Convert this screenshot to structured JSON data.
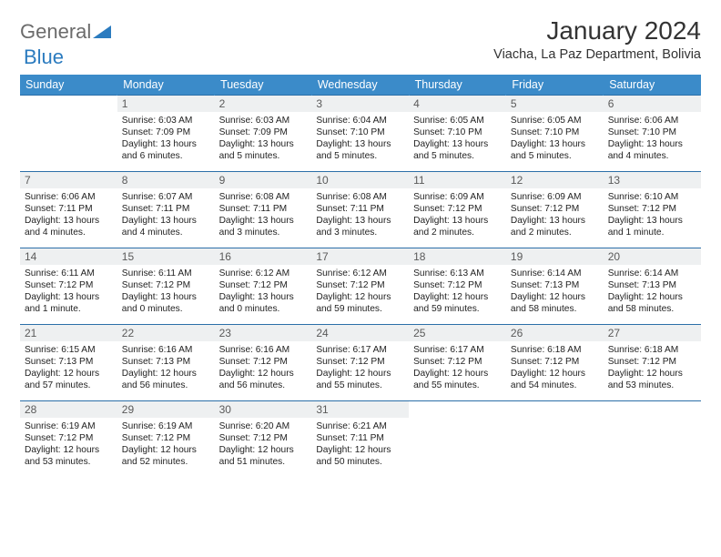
{
  "brand": {
    "part1": "General",
    "part2": "Blue"
  },
  "title": "January 2024",
  "location": "Viacha, La Paz Department, Bolivia",
  "colors": {
    "header_bg": "#3b8bc9",
    "cell_border": "#2b6fa8",
    "daynum_bg": "#eef0f1",
    "brand_gray": "#6b6b6b",
    "brand_blue": "#2b7bbf"
  },
  "weekdays": [
    "Sunday",
    "Monday",
    "Tuesday",
    "Wednesday",
    "Thursday",
    "Friday",
    "Saturday"
  ],
  "weeks": [
    [
      null,
      {
        "n": "1",
        "sr": "Sunrise: 6:03 AM",
        "ss": "Sunset: 7:09 PM",
        "dl": "Daylight: 13 hours and 6 minutes."
      },
      {
        "n": "2",
        "sr": "Sunrise: 6:03 AM",
        "ss": "Sunset: 7:09 PM",
        "dl": "Daylight: 13 hours and 5 minutes."
      },
      {
        "n": "3",
        "sr": "Sunrise: 6:04 AM",
        "ss": "Sunset: 7:10 PM",
        "dl": "Daylight: 13 hours and 5 minutes."
      },
      {
        "n": "4",
        "sr": "Sunrise: 6:05 AM",
        "ss": "Sunset: 7:10 PM",
        "dl": "Daylight: 13 hours and 5 minutes."
      },
      {
        "n": "5",
        "sr": "Sunrise: 6:05 AM",
        "ss": "Sunset: 7:10 PM",
        "dl": "Daylight: 13 hours and 5 minutes."
      },
      {
        "n": "6",
        "sr": "Sunrise: 6:06 AM",
        "ss": "Sunset: 7:10 PM",
        "dl": "Daylight: 13 hours and 4 minutes."
      }
    ],
    [
      {
        "n": "7",
        "sr": "Sunrise: 6:06 AM",
        "ss": "Sunset: 7:11 PM",
        "dl": "Daylight: 13 hours and 4 minutes."
      },
      {
        "n": "8",
        "sr": "Sunrise: 6:07 AM",
        "ss": "Sunset: 7:11 PM",
        "dl": "Daylight: 13 hours and 4 minutes."
      },
      {
        "n": "9",
        "sr": "Sunrise: 6:08 AM",
        "ss": "Sunset: 7:11 PM",
        "dl": "Daylight: 13 hours and 3 minutes."
      },
      {
        "n": "10",
        "sr": "Sunrise: 6:08 AM",
        "ss": "Sunset: 7:11 PM",
        "dl": "Daylight: 13 hours and 3 minutes."
      },
      {
        "n": "11",
        "sr": "Sunrise: 6:09 AM",
        "ss": "Sunset: 7:12 PM",
        "dl": "Daylight: 13 hours and 2 minutes."
      },
      {
        "n": "12",
        "sr": "Sunrise: 6:09 AM",
        "ss": "Sunset: 7:12 PM",
        "dl": "Daylight: 13 hours and 2 minutes."
      },
      {
        "n": "13",
        "sr": "Sunrise: 6:10 AM",
        "ss": "Sunset: 7:12 PM",
        "dl": "Daylight: 13 hours and 1 minute."
      }
    ],
    [
      {
        "n": "14",
        "sr": "Sunrise: 6:11 AM",
        "ss": "Sunset: 7:12 PM",
        "dl": "Daylight: 13 hours and 1 minute."
      },
      {
        "n": "15",
        "sr": "Sunrise: 6:11 AM",
        "ss": "Sunset: 7:12 PM",
        "dl": "Daylight: 13 hours and 0 minutes."
      },
      {
        "n": "16",
        "sr": "Sunrise: 6:12 AM",
        "ss": "Sunset: 7:12 PM",
        "dl": "Daylight: 13 hours and 0 minutes."
      },
      {
        "n": "17",
        "sr": "Sunrise: 6:12 AM",
        "ss": "Sunset: 7:12 PM",
        "dl": "Daylight: 12 hours and 59 minutes."
      },
      {
        "n": "18",
        "sr": "Sunrise: 6:13 AM",
        "ss": "Sunset: 7:12 PM",
        "dl": "Daylight: 12 hours and 59 minutes."
      },
      {
        "n": "19",
        "sr": "Sunrise: 6:14 AM",
        "ss": "Sunset: 7:13 PM",
        "dl": "Daylight: 12 hours and 58 minutes."
      },
      {
        "n": "20",
        "sr": "Sunrise: 6:14 AM",
        "ss": "Sunset: 7:13 PM",
        "dl": "Daylight: 12 hours and 58 minutes."
      }
    ],
    [
      {
        "n": "21",
        "sr": "Sunrise: 6:15 AM",
        "ss": "Sunset: 7:13 PM",
        "dl": "Daylight: 12 hours and 57 minutes."
      },
      {
        "n": "22",
        "sr": "Sunrise: 6:16 AM",
        "ss": "Sunset: 7:13 PM",
        "dl": "Daylight: 12 hours and 56 minutes."
      },
      {
        "n": "23",
        "sr": "Sunrise: 6:16 AM",
        "ss": "Sunset: 7:12 PM",
        "dl": "Daylight: 12 hours and 56 minutes."
      },
      {
        "n": "24",
        "sr": "Sunrise: 6:17 AM",
        "ss": "Sunset: 7:12 PM",
        "dl": "Daylight: 12 hours and 55 minutes."
      },
      {
        "n": "25",
        "sr": "Sunrise: 6:17 AM",
        "ss": "Sunset: 7:12 PM",
        "dl": "Daylight: 12 hours and 55 minutes."
      },
      {
        "n": "26",
        "sr": "Sunrise: 6:18 AM",
        "ss": "Sunset: 7:12 PM",
        "dl": "Daylight: 12 hours and 54 minutes."
      },
      {
        "n": "27",
        "sr": "Sunrise: 6:18 AM",
        "ss": "Sunset: 7:12 PM",
        "dl": "Daylight: 12 hours and 53 minutes."
      }
    ],
    [
      {
        "n": "28",
        "sr": "Sunrise: 6:19 AM",
        "ss": "Sunset: 7:12 PM",
        "dl": "Daylight: 12 hours and 53 minutes."
      },
      {
        "n": "29",
        "sr": "Sunrise: 6:19 AM",
        "ss": "Sunset: 7:12 PM",
        "dl": "Daylight: 12 hours and 52 minutes."
      },
      {
        "n": "30",
        "sr": "Sunrise: 6:20 AM",
        "ss": "Sunset: 7:12 PM",
        "dl": "Daylight: 12 hours and 51 minutes."
      },
      {
        "n": "31",
        "sr": "Sunrise: 6:21 AM",
        "ss": "Sunset: 7:11 PM",
        "dl": "Daylight: 12 hours and 50 minutes."
      },
      null,
      null,
      null
    ]
  ]
}
